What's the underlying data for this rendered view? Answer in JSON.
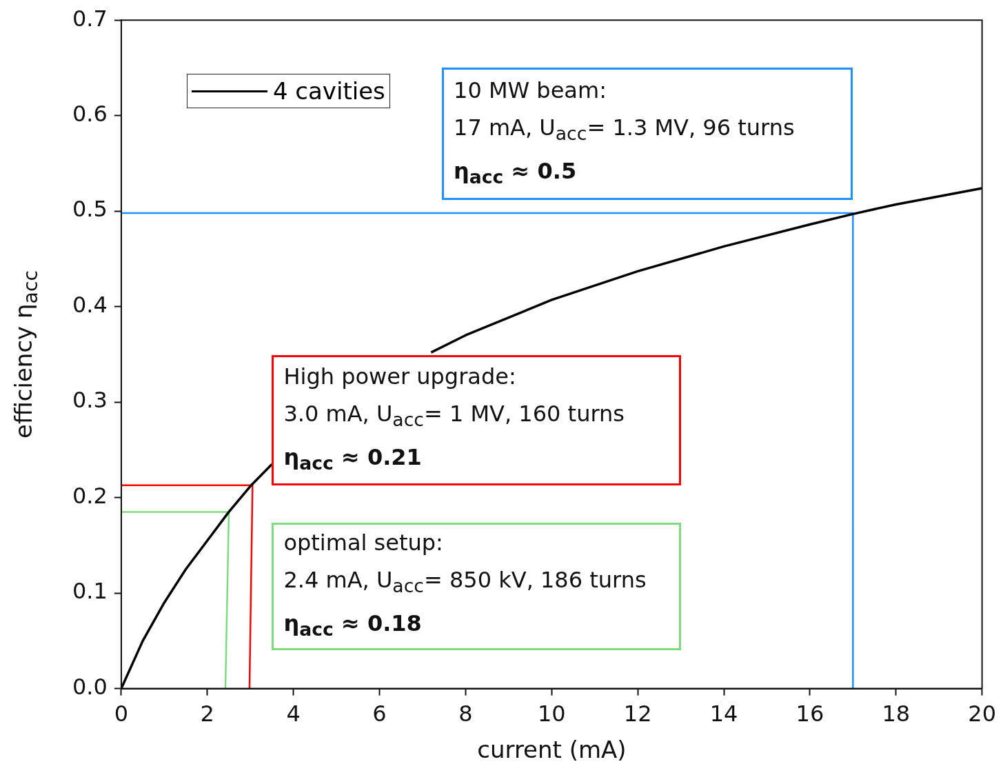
{
  "chart_data": {
    "type": "line",
    "xlabel": "current (mA)",
    "ylabel": "efficiency η$_{acc}$",
    "xlim": [
      0,
      20
    ],
    "xticks": [
      0,
      2,
      4,
      6,
      8,
      10,
      12,
      14,
      16,
      18,
      20
    ],
    "ylim": [
      0,
      0.7
    ],
    "yticks": [
      {
        "value": 0,
        "label": "0.0"
      },
      0.1,
      0.2,
      0.3,
      0.4,
      0.5,
      0.6,
      0.7
    ],
    "legend": "top left",
    "marker": "none",
    "line_style": "solid",
    "grid": false,
    "series": [
      {
        "name": "4 cavities",
        "color": "#000000",
        "x": [
          0,
          0.5,
          1,
          1.5,
          2,
          2.5,
          3,
          3.5,
          4,
          5,
          6,
          7.2,
          8,
          10,
          12,
          14,
          16,
          17,
          18,
          20
        ],
        "values": [
          0,
          0.05,
          0.09,
          0.125,
          0.155,
          0.185,
          0.212,
          0.235,
          null,
          null,
          null,
          0.352,
          0.37,
          0.407,
          0.437,
          0.463,
          0.486,
          0.497,
          0.507,
          0.524
        ]
      },
      {
        "color": "#1e90ff",
        "x": [
          0,
          17,
          17
        ],
        "values": [
          0.498,
          0.498,
          0
        ]
      },
      {
        "color": "#ff0000",
        "x": [
          0,
          3.05,
          2.98
        ],
        "values": [
          0.213,
          0.213,
          0
        ]
      },
      {
        "color": "#7ddc7d",
        "x": [
          0,
          2.5,
          2.42
        ],
        "values": [
          0.185,
          0.185,
          0
        ]
      }
    ],
    "annotations": [
      "10 MW beam:\n17 mA, U$_{acc}$= 1.3 MV, 96 turns\nη$_{acc}$ ≈ 0.5",
      "High power upgrade:\n3.0 mA, U$_{acc}$= 1 MV, 160 turns\nη$_{acc}$ ≈ 0.21",
      "optimal setup:\n2.4 mA, U$_{acc}$= 850 kV, 186 turns\nη$_{acc}$ ≈ 0.18"
    ]
  }
}
